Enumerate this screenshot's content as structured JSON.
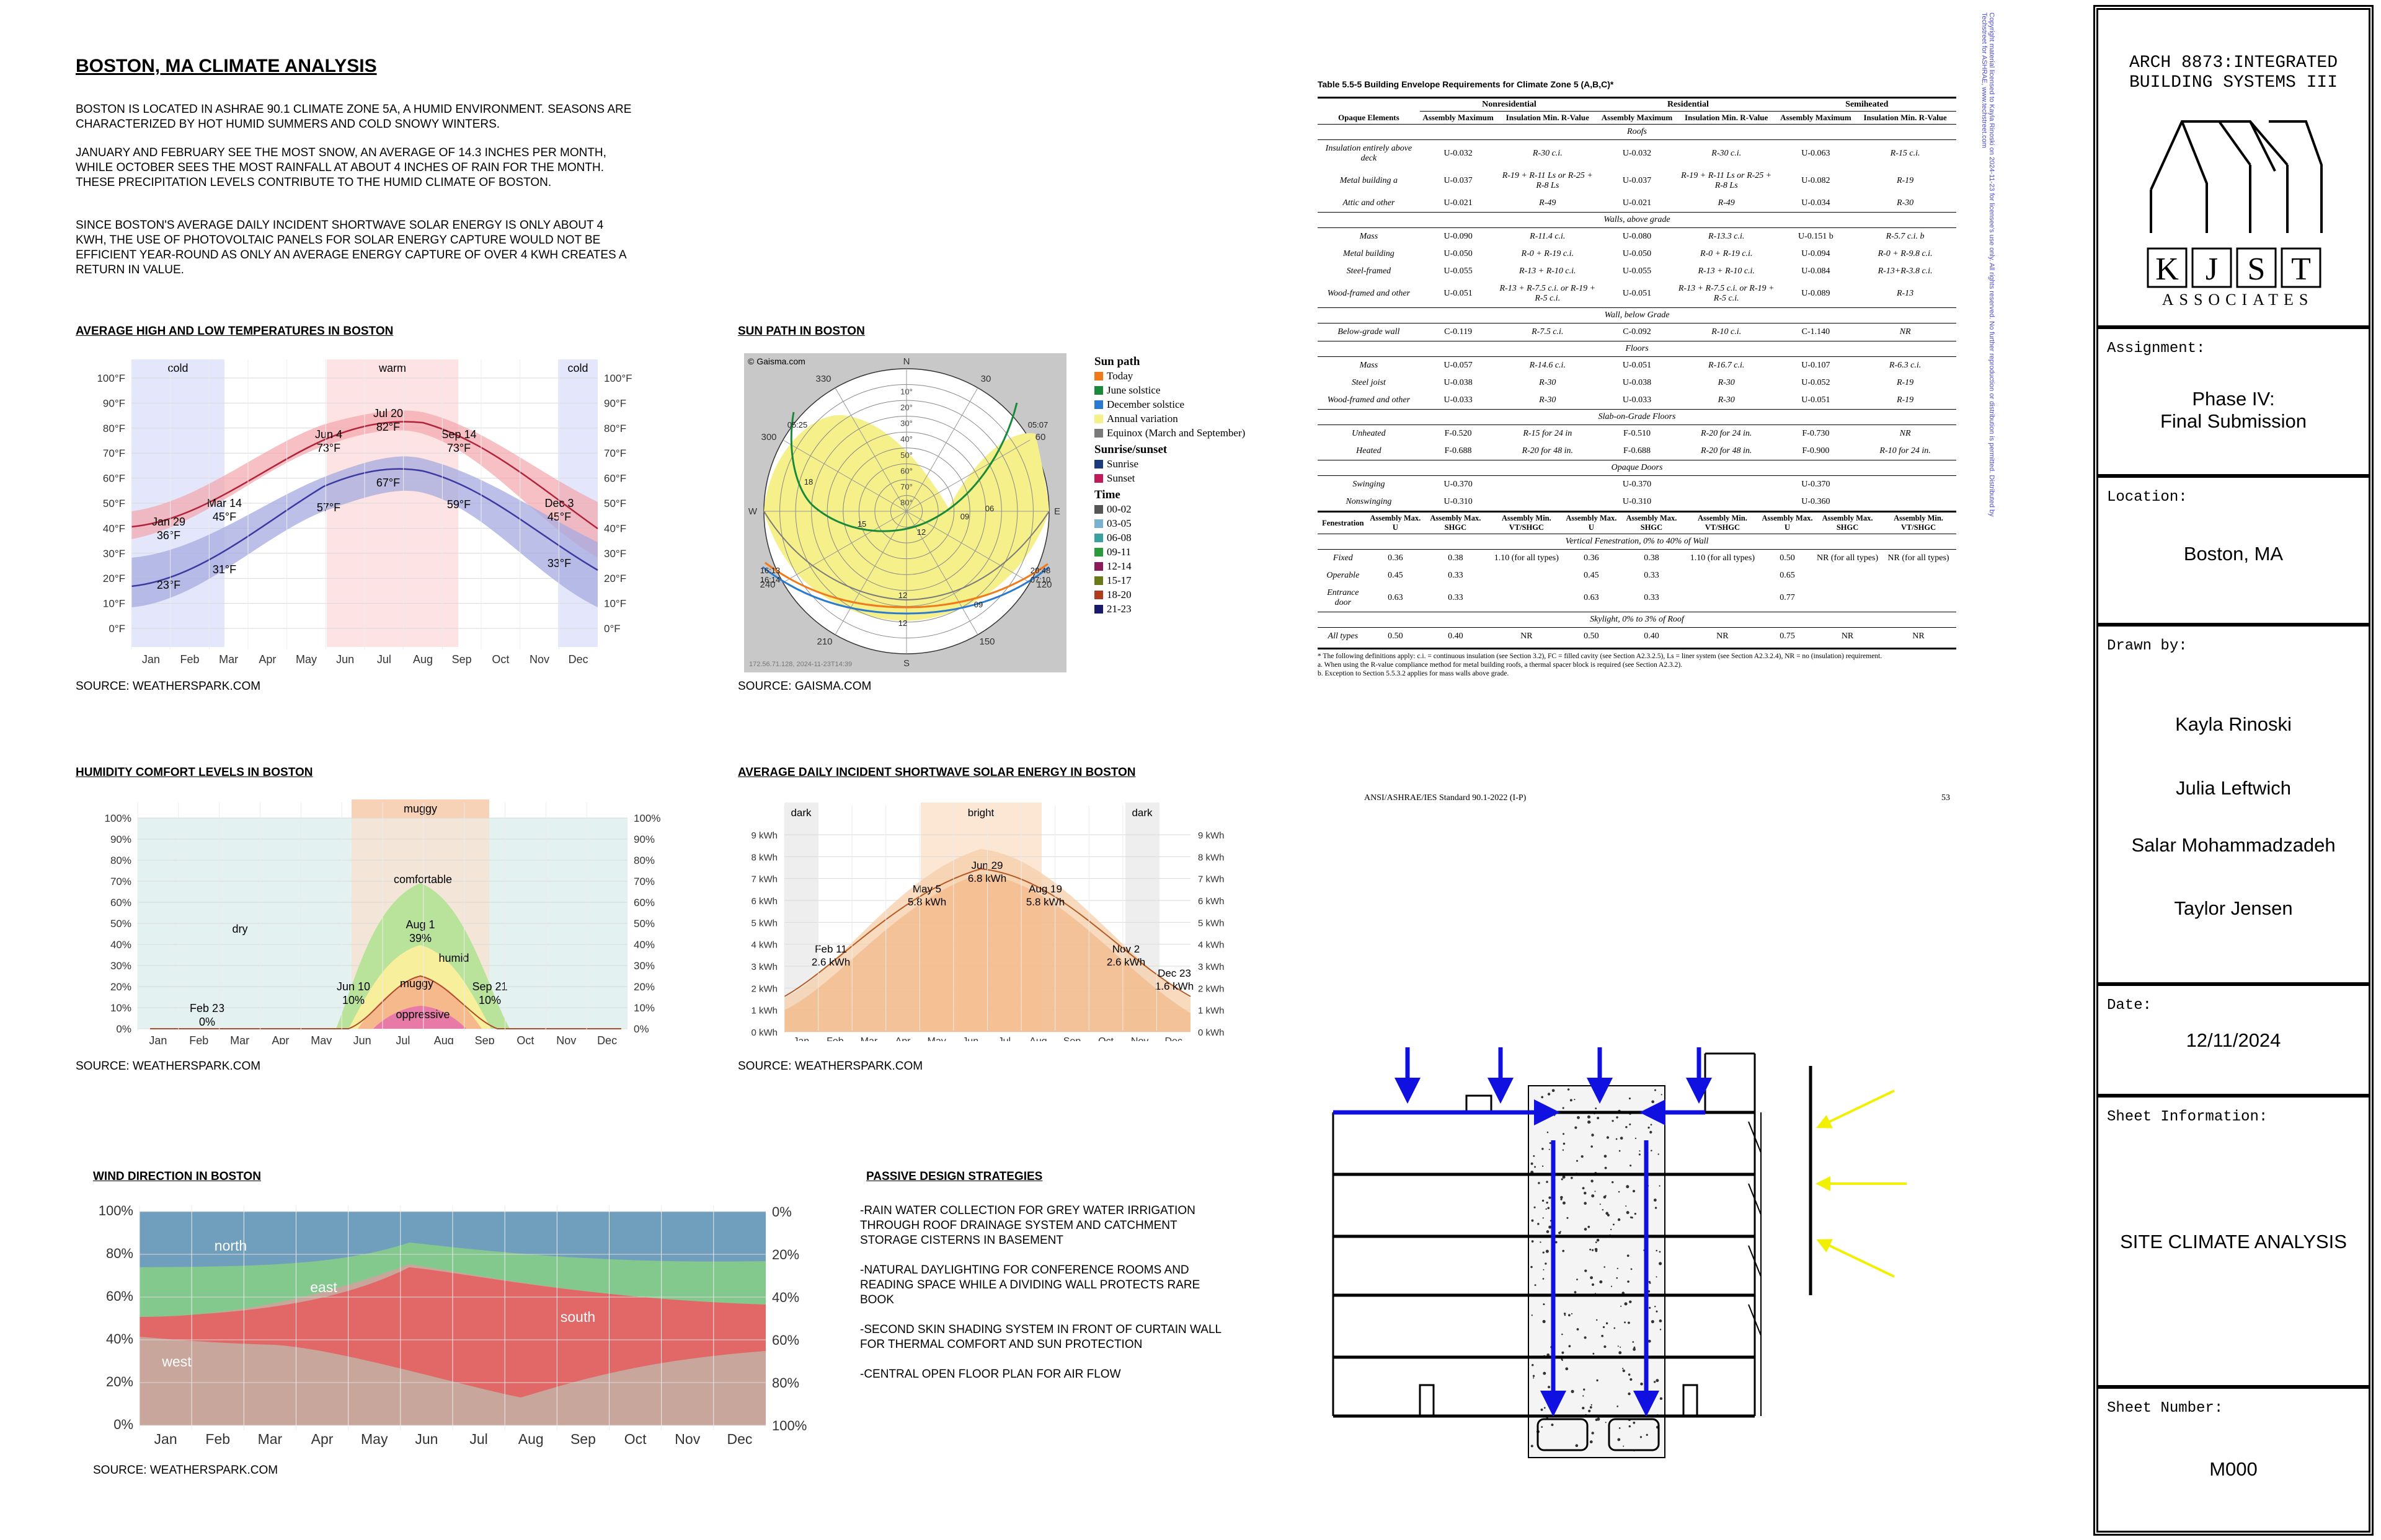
{
  "intro": {
    "title": "BOSTON, MA CLIMATE ANALYSIS",
    "p1": "BOSTON IS LOCATED IN ASHRAE 90.1 CLIMATE ZONE 5A, A HUMID ENVIRONMENT. SEASONS ARE CHARACTERIZED BY HOT HUMID SUMMERS AND COLD SNOWY WINTERS.",
    "p2": "JANUARY AND FEBRUARY SEE THE MOST SNOW, AN AVERAGE OF 14.3 INCHES PER MONTH, WHILE OCTOBER SEES THE MOST RAINFALL AT ABOUT 4 INCHES OF RAIN FOR THE MONTH. THESE PRECIPITATION LEVELS CONTRIBUTE TO THE HUMID CLIMATE OF BOSTON.",
    "p3": "SINCE BOSTON'S AVERAGE DAILY INCIDENT SHORTWAVE SOLAR ENERGY IS ONLY ABOUT 4 kWh, THE USE OF PHOTOVOLTAIC PANELS FOR SOLAR ENERGY CAPTURE WOULD NOT BE EFFICIENT YEAR-ROUND AS ONLY AN AVERAGE ENERGY CAPTURE OF OVER 4 kWh CREATES A RETURN IN VALUE."
  },
  "months": [
    "Jan",
    "Feb",
    "Mar",
    "Apr",
    "May",
    "Jun",
    "Jul",
    "Aug",
    "Sep",
    "Oct",
    "Nov",
    "Dec"
  ],
  "temp_chart": {
    "heading": "AVERAGE HIGH AND LOW TEMPERATURES IN BOSTON",
    "source": "SOURCE: WEATHERSPARK.COM",
    "band_cold": "cold",
    "band_warm": "warm",
    "yticks": [
      "100°F",
      "90°F",
      "80°F",
      "70°F",
      "60°F",
      "50°F",
      "40°F",
      "30°F",
      "20°F",
      "10°F",
      "0°F"
    ],
    "labels": [
      {
        "d": "Jan 29",
        "v": "36°F"
      },
      {
        "d": "",
        "v": "23°F"
      },
      {
        "d": "Mar 14",
        "v": "45°F"
      },
      {
        "d": "",
        "v": "31°F"
      },
      {
        "d": "Jun 4",
        "v": "73°F"
      },
      {
        "d": "",
        "v": "57°F"
      },
      {
        "d": "Jul 20",
        "v": "82°F"
      },
      {
        "d": "",
        "v": "67°F"
      },
      {
        "d": "Sep 14",
        "v": "73°F"
      },
      {
        "d": "",
        "v": "59°F"
      },
      {
        "d": "Dec 3",
        "v": "45°F"
      },
      {
        "d": "",
        "v": "33°F"
      }
    ]
  },
  "sun_chart": {
    "heading": "SUN PATH IN BOSTON",
    "source": "SOURCE: GAISMA.COM",
    "copyright": "© Gaisma.com",
    "stamp": "172.56.71.128, 2024-11-23T14:39",
    "compass": [
      "N",
      "E",
      "S",
      "W"
    ],
    "azimuths": [
      "330",
      "30",
      "300",
      "60",
      "240",
      "120",
      "210",
      "150"
    ],
    "altitudes": [
      "10°",
      "20°",
      "30°",
      "40°",
      "50°",
      "60°",
      "70°",
      "80°"
    ],
    "times": [
      "05:25",
      "05:07",
      "16:13",
      "16:14",
      "18",
      "06",
      "15",
      "09",
      "12",
      "12",
      "12",
      "09",
      "20:48",
      "07:10"
    ],
    "legend": {
      "sunpath_title": "Sun path",
      "sunpath": [
        {
          "label": "Today",
          "color": "#f07a1a"
        },
        {
          "label": "June solstice",
          "color": "#1a8a3a"
        },
        {
          "label": "December solstice",
          "color": "#2a7ad0"
        },
        {
          "label": "Annual variation",
          "color": "#f5f08a"
        },
        {
          "label": "Equinox (March and September)",
          "color": "#7a7a7a"
        }
      ],
      "sunrise_title": "Sunrise/sunset",
      "sunrise": [
        {
          "label": "Sunrise",
          "color": "#1a3a7a"
        },
        {
          "label": "Sunset",
          "color": "#c01a5a"
        }
      ],
      "time_title": "Time",
      "time": [
        {
          "label": "00-02",
          "color": "#555555"
        },
        {
          "label": "03-05",
          "color": "#7ab0d0"
        },
        {
          "label": "06-08",
          "color": "#3aa0a0"
        },
        {
          "label": "09-11",
          "color": "#2a9a3a"
        },
        {
          "label": "12-14",
          "color": "#8a1a5a"
        },
        {
          "label": "15-17",
          "color": "#6a7a1a"
        },
        {
          "label": "18-20",
          "color": "#b03a1a"
        },
        {
          "label": "21-23",
          "color": "#1a1a6a"
        }
      ]
    }
  },
  "humidity_chart": {
    "heading": "HUMIDITY COMFORT LEVELS IN BOSTON",
    "source": "SOURCE: WEATHERSPARK.COM",
    "band_muggy": "muggy",
    "yticks": [
      "100%",
      "90%",
      "80%",
      "70%",
      "60%",
      "50%",
      "40%",
      "30%",
      "20%",
      "10%",
      "0%"
    ],
    "zones": [
      "dry",
      "comfortable",
      "humid",
      "muggy",
      "oppressive"
    ],
    "labels": [
      {
        "d": "Feb 23",
        "v": "0%"
      },
      {
        "d": "Jun 10",
        "v": "10%"
      },
      {
        "d": "Aug 1",
        "v": "39%"
      },
      {
        "d": "Sep 21",
        "v": "10%"
      }
    ]
  },
  "solar_chart": {
    "heading": "AVERAGE DAILY INCIDENT SHORTWAVE SOLAR ENERGY IN BOSTON",
    "source": "SOURCE: WEATHERSPARK.COM",
    "band_dark": "dark",
    "band_bright": "bright",
    "yticks": [
      "9 kWh",
      "8 kWh",
      "7 kWh",
      "6 kWh",
      "5 kWh",
      "4 kWh",
      "3 kWh",
      "2 kWh",
      "1 kWh",
      "0 kWh"
    ],
    "labels": [
      {
        "d": "Feb 11",
        "v": "2.6 kWh"
      },
      {
        "d": "May 5",
        "v": "5.8 kWh"
      },
      {
        "d": "Jun 29",
        "v": "6.8 kWh"
      },
      {
        "d": "Aug 19",
        "v": "5.8 kWh"
      },
      {
        "d": "Nov 2",
        "v": "2.6 kWh"
      },
      {
        "d": "Dec 23",
        "v": "1.6 kWh"
      }
    ]
  },
  "wind_chart": {
    "heading": "WIND DIRECTION IN BOSTON",
    "source": "SOURCE: WEATHERSPARK.COM",
    "yticks_left": [
      "100%",
      "80%",
      "60%",
      "40%",
      "20%",
      "0%"
    ],
    "yticks_right": [
      "0%",
      "20%",
      "40%",
      "60%",
      "80%",
      "100%"
    ],
    "directions": [
      "north",
      "east",
      "south",
      "west"
    ]
  },
  "passive": {
    "heading": "PASSIVE DESIGN STRATEGIES",
    "items": [
      "-RAIN WATER COLLECTION FOR GREY WATER IRRIGATION THROUGH ROOF DRAINAGE SYSTEM AND CATCHMENT STORAGE CISTERNS IN BASEMENT",
      "-NATURAL DAYLIGHTING FOR CONFERENCE ROOMS AND READING SPACE WHILE A DIVIDING WALL PROTECTS RARE BOOK",
      "-SECOND SKIN SHADING SYSTEM IN FRONT OF CURTAIN WALL FOR THERMAL COMFORT AND SUN PROTECTION",
      "-CENTRAL OPEN FLOOR PLAN FOR AIR FLOW"
    ]
  },
  "ashrae": {
    "caption": "Table 5.5-5  Building Envelope Requirements for Climate Zone 5 (A,B,C)*",
    "groups": [
      "Nonresidential",
      "Residential",
      "Semiheated"
    ],
    "opaque_head": [
      "Opaque Elements",
      "Assembly Maximum",
      "Insulation Min. R-Value",
      "Assembly Maximum",
      "Insulation Min. R-Value",
      "Assembly Maximum",
      "Insulation Min. R-Value"
    ],
    "sections": [
      {
        "name": "Roofs",
        "rows": [
          [
            "Insulation entirely above deck",
            "U-0.032",
            "R-30 c.i.",
            "U-0.032",
            "R-30 c.i.",
            "U-0.063",
            "R-15 c.i."
          ],
          [
            "Metal building a",
            "U-0.037",
            "R-19 + R-11 Ls or R-25 + R-8 Ls",
            "U-0.037",
            "R-19 + R-11 Ls or R-25 + R-8 Ls",
            "U-0.082",
            "R-19"
          ],
          [
            "Attic and other",
            "U-0.021",
            "R-49",
            "U-0.021",
            "R-49",
            "U-0.034",
            "R-30"
          ]
        ]
      },
      {
        "name": "Walls, above grade",
        "rows": [
          [
            "Mass",
            "U-0.090",
            "R-11.4 c.i.",
            "U-0.080",
            "R-13.3 c.i.",
            "U-0.151 b",
            "R-5.7 c.i. b"
          ],
          [
            "Metal building",
            "U-0.050",
            "R-0 + R-19 c.i.",
            "U-0.050",
            "R-0 + R-19 c.i.",
            "U-0.094",
            "R-0 + R-9.8 c.i."
          ],
          [
            "Steel-framed",
            "U-0.055",
            "R-13 + R-10 c.i.",
            "U-0.055",
            "R-13 + R-10 c.i.",
            "U-0.084",
            "R-13+R-3.8 c.i."
          ],
          [
            "Wood-framed and other",
            "U-0.051",
            "R-13 + R-7.5 c.i. or R-19 + R-5 c.i.",
            "U-0.051",
            "R-13 + R-7.5 c.i. or R-19 + R-5 c.i.",
            "U-0.089",
            "R-13"
          ]
        ]
      },
      {
        "name": "Wall, below Grade",
        "rows": [
          [
            "Below-grade wall",
            "C-0.119",
            "R-7.5 c.i.",
            "C-0.092",
            "R-10 c.i.",
            "C-1.140",
            "NR"
          ]
        ]
      },
      {
        "name": "Floors",
        "rows": [
          [
            "Mass",
            "U-0.057",
            "R-14.6 c.i.",
            "U-0.051",
            "R-16.7 c.i.",
            "U-0.107",
            "R-6.3 c.i."
          ],
          [
            "Steel joist",
            "U-0.038",
            "R-30",
            "U-0.038",
            "R-30",
            "U-0.052",
            "R-19"
          ],
          [
            "Wood-framed and other",
            "U-0.033",
            "R-30",
            "U-0.033",
            "R-30",
            "U-0.051",
            "R-19"
          ]
        ]
      },
      {
        "name": "Slab-on-Grade Floors",
        "rows": [
          [
            "Unheated",
            "F-0.520",
            "R-15 for 24 in",
            "F-0.510",
            "R-20 for 24 in.",
            "F-0.730",
            "NR"
          ],
          [
            "Heated",
            "F-0.688",
            "R-20 for 48 in.",
            "F-0.688",
            "R-20 for 48 in.",
            "F-0.900",
            "R-10 for 24 in."
          ]
        ]
      },
      {
        "name": "Opaque Doors",
        "rows": [
          [
            "Swinging",
            "U-0.370",
            "",
            "U-0.370",
            "",
            "U-0.370",
            ""
          ],
          [
            "Nonswinging",
            "U-0.310",
            "",
            "U-0.310",
            "",
            "U-0.360",
            ""
          ]
        ]
      }
    ],
    "fen_head": [
      "Fenestration",
      "Assembly Max. U",
      "Assembly Max. SHGC",
      "Assembly Min. VT/SHGC",
      "Assembly Max. U",
      "Assembly Max. SHGC",
      "Assembly Min. VT/SHGC",
      "Assembly Max. U",
      "Assembly Max. SHGC",
      "Assembly Min. VT/SHGC"
    ],
    "fen_section1": "Vertical Fenestration, 0% to 40% of Wall",
    "fen_rows1": [
      [
        "Fixed",
        "0.36",
        "0.38",
        "1.10 (for all types)",
        "0.36",
        "0.38",
        "1.10 (for all types)",
        "0.50",
        "NR (for all types)",
        "NR (for all types)"
      ],
      [
        "Operable",
        "0.45",
        "0.33",
        "",
        "0.45",
        "0.33",
        "",
        "0.65",
        "",
        ""
      ],
      [
        "Entrance door",
        "0.63",
        "0.33",
        "",
        "0.63",
        "0.33",
        "",
        "0.77",
        "",
        ""
      ]
    ],
    "fen_section2": "Skylight, 0% to 3% of Roof",
    "fen_rows2": [
      [
        "All types",
        "0.50",
        "0.40",
        "NR",
        "0.50",
        "0.40",
        "NR",
        "0.75",
        "NR",
        "NR"
      ]
    ],
    "notes": [
      "* The following definitions apply: c.i. = continuous insulation (see Section 3.2), FC = filled cavity (see Section A2.3.2.5), Ls = liner system (see Section A2.3.2.4), NR = no (insulation) requirement.",
      "a. When using the R-value compliance method for metal building roofs, a thermal spacer block is required (see Section A2.3.2).",
      "b. Exception to Section 5.5.3.2 applies for mass walls above grade."
    ],
    "footer_left": "ANSI/ASHRAE/IES Standard 90.1-2022 (I-P)",
    "footer_right": "53",
    "side_note": "Copyright material licensed to Kayla Rinoski on 2024-11-23 for licensee's use only. All rights reserved. No further reproduction or distribution is permitted. Distributed by Techstreet for ASHRAE, www.techstreet.com"
  },
  "title_block": {
    "course": "ARCH 8873:INTEGRATED\nBUILDING SYSTEMS III",
    "logo_letters": [
      "K",
      "J",
      "S",
      "T"
    ],
    "logo_sub": "ASSOCIATES",
    "assignment_label": "Assignment:",
    "assignment": "Phase IV:\nFinal Submission",
    "location_label": "Location:",
    "location": "Boston, MA",
    "drawn_label": "Drawn by:",
    "drawn": [
      "Kayla Rinoski",
      "Julia Leftwich",
      "Salar Mohammadzadeh",
      "Taylor Jensen"
    ],
    "date_label": "Date:",
    "date": "12/11/2024",
    "sheet_info_label": "Sheet Information:",
    "sheet_info": "SITE CLIMATE ANALYSIS",
    "sheet_number_label": "Sheet Number:",
    "sheet_number": "M000"
  }
}
